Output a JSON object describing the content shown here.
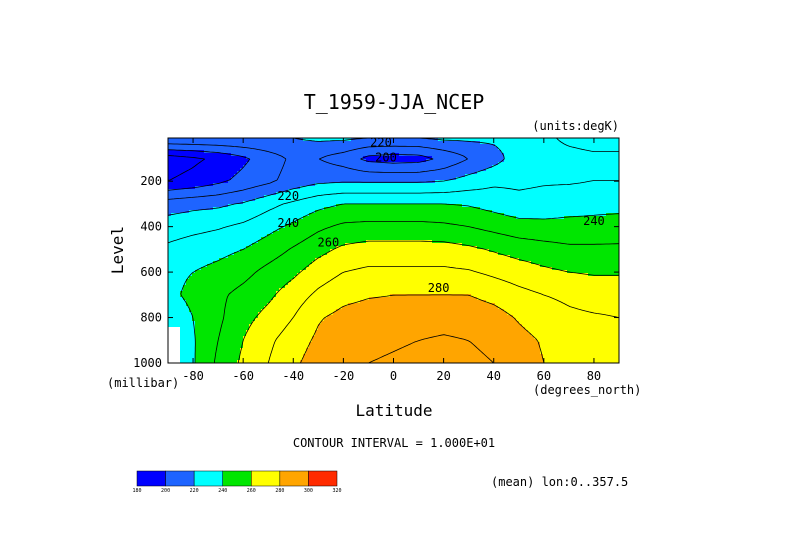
{
  "chart_data": {
    "type": "heatmap",
    "title": "T_1959-JJA_NCEP",
    "units_label": "(units:degK)",
    "xlabel": "Latitude",
    "xunit_label": "(degrees_north)",
    "ylabel": "Level",
    "yunit_label": "(millibar)",
    "xlim": [
      -90,
      90
    ],
    "ylim": [
      1000,
      10
    ],
    "x_ticks": [
      -80,
      -60,
      -40,
      -20,
      0,
      20,
      40,
      60,
      80
    ],
    "x_tick_labels": [
      "-80",
      "-60",
      "-40",
      "-20",
      "0",
      "20",
      "40",
      "60",
      "80"
    ],
    "y_ticks": [
      200,
      400,
      600,
      800,
      1000
    ],
    "y_tick_labels": [
      "200",
      "400",
      "600",
      "800",
      "1000"
    ],
    "contour_interval_label": "CONTOUR INTERVAL = 1.000E+01",
    "mean_label": "(mean) lon:0..357.5",
    "contour_labels": [
      {
        "text": "220",
        "x": -5,
        "y": 30
      },
      {
        "text": "200",
        "x": -3,
        "y": 95
      },
      {
        "text": "220",
        "x": -42,
        "y": 265
      },
      {
        "text": "240",
        "x": -42,
        "y": 385
      },
      {
        "text": "260",
        "x": -26,
        "y": 470
      },
      {
        "text": "280",
        "x": 18,
        "y": 670
      },
      {
        "text": "240",
        "x": 80,
        "y": 375
      }
    ],
    "colorbar": {
      "boundaries": [
        180,
        200,
        220,
        240,
        260,
        280,
        300,
        320
      ],
      "labels": [
        "180",
        "200",
        "220",
        "240",
        "260",
        "280",
        "300",
        "320"
      ],
      "colors": [
        "#0000ff",
        "#1e64ff",
        "#00ffff",
        "#00e600",
        "#ffff00",
        "#ffa500",
        "#ff2b00"
      ]
    },
    "temperature_field": {
      "lat": [
        -90,
        -80,
        -70,
        -60,
        -50,
        -40,
        -30,
        -20,
        -10,
        0,
        10,
        20,
        30,
        40,
        50,
        60,
        70,
        80,
        90
      ],
      "levels_mb": [
        10,
        100,
        200,
        300,
        400,
        500,
        600,
        700,
        800,
        900,
        1000
      ],
      "values": [
        [
          220,
          220,
          220,
          220,
          220,
          220,
          222,
          222,
          220,
          220,
          220,
          222,
          222,
          222,
          224,
          228,
          232,
          234,
          234
        ],
        [
          185,
          188,
          192,
          198,
          205,
          212,
          210,
          205,
          197,
          195,
          196,
          202,
          210,
          216,
          225,
          227,
          227,
          228,
          228
        ],
        [
          190,
          193,
          198,
          203,
          208,
          214,
          218,
          219,
          219,
          219,
          219,
          220,
          224,
          228,
          228,
          229,
          229,
          230,
          230
        ],
        [
          215,
          217,
          218,
          221,
          227,
          232,
          237,
          240,
          240,
          240,
          240,
          240,
          239,
          236,
          233,
          234,
          236,
          237,
          237
        ],
        [
          225,
          227,
          229,
          232,
          237,
          242,
          248,
          252,
          253,
          253,
          253,
          252,
          250,
          247,
          244,
          243,
          243,
          243,
          244
        ],
        [
          232,
          235,
          237,
          240,
          245,
          251,
          257,
          262,
          264,
          264,
          264,
          264,
          262,
          259,
          256,
          254,
          252,
          252,
          252
        ],
        [
          238,
          240,
          243,
          247,
          253,
          258,
          265,
          270,
          272,
          272,
          272,
          272,
          271,
          268,
          265,
          262,
          260,
          259,
          259
        ],
        [
          238,
          242,
          248,
          253,
          258,
          265,
          272,
          277,
          279,
          280,
          280,
          280,
          280,
          277,
          273,
          270,
          268,
          266,
          266
        ],
        [
          234,
          240,
          248,
          257,
          263,
          270,
          279,
          283,
          285,
          285,
          286,
          287,
          286,
          284,
          279,
          275,
          272,
          271,
          270
        ],
        [
          234,
          239,
          250,
          260,
          268,
          275,
          282,
          287,
          288,
          289,
          290,
          291,
          290,
          288,
          283,
          279,
          276,
          274,
          273
        ],
        [
          234,
          239,
          252,
          262,
          270,
          278,
          285,
          289,
          290,
          291,
          292,
          293,
          292,
          290,
          285,
          280,
          276,
          274,
          273
        ]
      ],
      "missing_region": {
        "lat_max": -85,
        "level_min_mb": 840
      }
    }
  }
}
